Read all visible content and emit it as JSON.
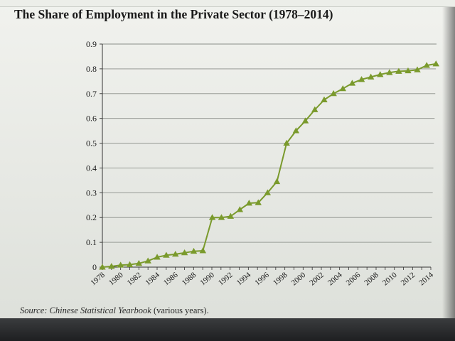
{
  "title": "The Share of Employment in the Private Sector (1978–2014)",
  "source": {
    "prefix": "Source: ",
    "publication": "Chinese Statistical Yearbook",
    "suffix": " (various years)."
  },
  "colors": {
    "line": "#7a9a2c",
    "grid": "#8a8e89",
    "text": "#1a1a1a"
  },
  "chart_data": {
    "type": "line",
    "title": "The Share of Employment in the Private Sector (1978–2014)",
    "xlabel": "",
    "ylabel": "",
    "xlim": [
      1978,
      2014
    ],
    "ylim": [
      0,
      0.9
    ],
    "grid": true,
    "legend": "none",
    "marker": "triangle",
    "y_ticks": [
      0,
      0.1,
      0.2,
      0.3,
      0.4,
      0.5,
      0.6,
      0.7,
      0.8,
      0.9
    ],
    "y_tick_labels": [
      "0",
      "0.1",
      "0.2",
      "0.3",
      "0.4",
      "0.5",
      "0.6",
      "0.7",
      "0.8",
      "0.9"
    ],
    "x_ticks": [
      1978,
      1980,
      1982,
      1984,
      1986,
      1988,
      1990,
      1992,
      1994,
      1996,
      1998,
      2000,
      2002,
      2004,
      2006,
      2008,
      2010,
      2012,
      2014
    ],
    "x_tick_labels": [
      "1978",
      "1980",
      "1982",
      "1984",
      "1986",
      "1988",
      "1990",
      "1992",
      "1994",
      "1996",
      "1998",
      "2000",
      "2002",
      "2004",
      "2006",
      "2008",
      "2010",
      "2012",
      "2014"
    ],
    "x": [
      1978,
      1979,
      1980,
      1981,
      1982,
      1983,
      1984,
      1985,
      1986,
      1987,
      1988,
      1989,
      1990,
      1991,
      1992,
      1993,
      1994,
      1995,
      1996,
      1997,
      1998,
      1999,
      2000,
      2001,
      2002,
      2003,
      2004,
      2005,
      2006,
      2007,
      2008,
      2009,
      2010,
      2011,
      2012,
      2013,
      2014
    ],
    "series": [
      {
        "values": [
          0.0,
          0.003,
          0.008,
          0.01,
          0.015,
          0.025,
          0.04,
          0.048,
          0.052,
          0.058,
          0.064,
          0.066,
          0.2,
          0.2,
          0.205,
          0.232,
          0.258,
          0.26,
          0.3,
          0.345,
          0.5,
          0.55,
          0.59,
          0.635,
          0.675,
          0.7,
          0.72,
          0.742,
          0.757,
          0.767,
          0.777,
          0.785,
          0.79,
          0.792,
          0.796,
          0.814,
          0.82
        ]
      }
    ]
  }
}
